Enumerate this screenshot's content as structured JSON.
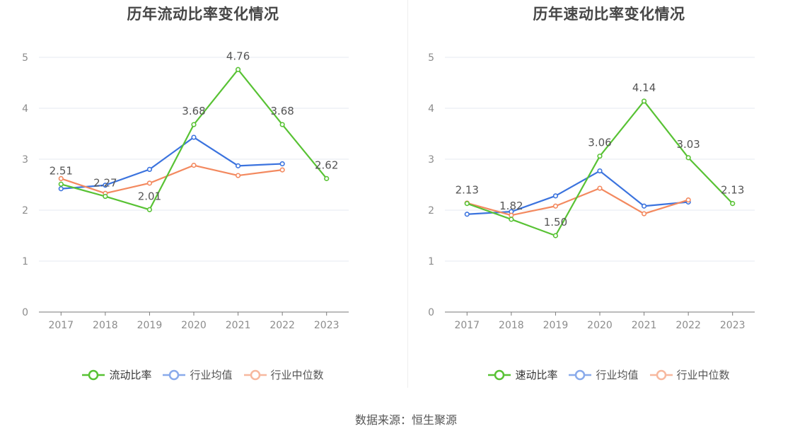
{
  "source_label": "数据来源：恒生聚源",
  "chart_data": [
    {
      "type": "line",
      "title": "历年流动比率变化情况",
      "categories": [
        "2017",
        "2018",
        "2019",
        "2020",
        "2021",
        "2022",
        "2023"
      ],
      "ylim": [
        0,
        5
      ],
      "yticks": [
        "0",
        "1",
        "2",
        "3",
        "4",
        "5"
      ],
      "grid": true,
      "legend_position": "bottom",
      "series": [
        {
          "name": "流动比率",
          "color": "#58c234",
          "values": [
            2.51,
            2.27,
            2.01,
            3.68,
            4.76,
            3.68,
            2.62
          ],
          "labels": [
            "2.51",
            "2.27",
            "2.01",
            "3.68",
            "4.76",
            "3.68",
            "2.62"
          ]
        },
        {
          "name": "行业均值",
          "color": "#3b73de",
          "values": [
            2.42,
            2.49,
            2.8,
            3.43,
            2.87,
            2.91,
            null
          ]
        },
        {
          "name": "行业中位数",
          "color": "#f3895f",
          "values": [
            2.62,
            2.33,
            2.53,
            2.88,
            2.68,
            2.79,
            null
          ]
        }
      ]
    },
    {
      "type": "line",
      "title": "历年速动比率变化情况",
      "categories": [
        "2017",
        "2018",
        "2019",
        "2020",
        "2021",
        "2022",
        "2023"
      ],
      "ylim": [
        0,
        5
      ],
      "yticks": [
        "0",
        "1",
        "2",
        "3",
        "4",
        "5"
      ],
      "grid": true,
      "legend_position": "bottom",
      "series": [
        {
          "name": "速动比率",
          "color": "#58c234",
          "values": [
            2.13,
            1.82,
            1.5,
            3.06,
            4.14,
            3.03,
            2.13
          ],
          "labels": [
            "2.13",
            "1.82",
            "1.50",
            "3.06",
            "4.14",
            "3.03",
            "2.13"
          ]
        },
        {
          "name": "行业均值",
          "color": "#3b73de",
          "values": [
            1.92,
            1.97,
            2.28,
            2.77,
            2.08,
            2.16,
            null
          ]
        },
        {
          "name": "行业中位数",
          "color": "#f3895f",
          "values": [
            2.14,
            1.9,
            2.08,
            2.43,
            1.93,
            2.2,
            null
          ]
        }
      ]
    }
  ]
}
